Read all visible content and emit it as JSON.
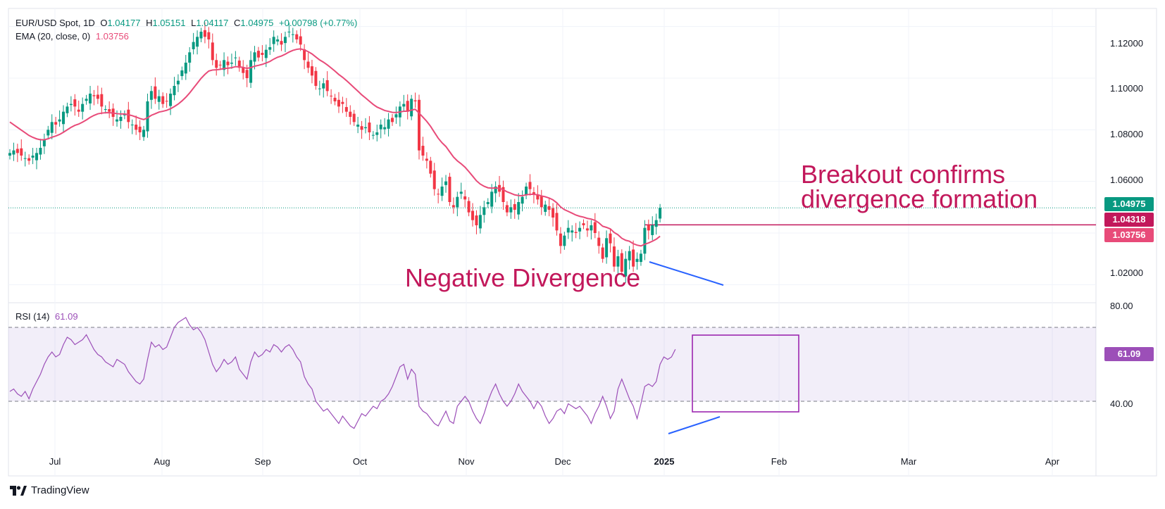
{
  "header": {
    "symbol": "EUR/USD Spot, 1D",
    "open_label": "O",
    "open": "1.04177",
    "high_label": "H",
    "high": "1.05151",
    "low_label": "L",
    "low": "1.04117",
    "close_label": "C",
    "close": "1.04975",
    "change": "+0.00798 (+0.77%)",
    "ema_label": "EMA (20, close, 0)",
    "ema_value": "1.03756",
    "rsi_label": "RSI (14)",
    "rsi_value": "61.09"
  },
  "annotations": {
    "breakout_line1": "Breakout confirms",
    "breakout_line2": "divergence formation",
    "negative_divergence": "Negative Divergence"
  },
  "badges": {
    "last_price": "1.04975",
    "breakout_level": "1.04318",
    "ema": "1.03756",
    "rsi": "61.09"
  },
  "price_axis_labels": [
    "1.12000",
    "1.10000",
    "1.08000",
    "1.06000",
    "1.02000"
  ],
  "rsi_axis_labels": [
    "80.00",
    "40.00"
  ],
  "month_labels": [
    "Jul",
    "Aug",
    "Sep",
    "Oct",
    "Nov",
    "Dec",
    "2025",
    "Feb",
    "Mar",
    "Apr"
  ],
  "branding": {
    "name": "TradingView"
  },
  "colors": {
    "up": "#089981",
    "down": "#f23645",
    "ema": "#e84b79",
    "rsi": "#9c4fb8",
    "annotation": "#c2185b",
    "trendline": "#2962ff",
    "last_price_badge": "#089981",
    "level_badge": "#c2185b",
    "ema_badge": "#e84b79"
  },
  "chart_data": [
    {
      "type": "candlestick",
      "title": "EUR/USD Spot, 1D",
      "x_type": "date",
      "ylim": [
        1.013,
        1.127
      ],
      "x_ticks": [
        "Jul",
        "Aug",
        "Sep",
        "Oct",
        "Nov",
        "Dec",
        "2025",
        "Feb",
        "Mar",
        "Apr"
      ],
      "series": [
        {
          "name": "EUR/USD",
          "style": "candles",
          "close": [
            1.071,
            1.072,
            1.071,
            1.07,
            1.069,
            1.068,
            1.07,
            1.071,
            1.073,
            1.076,
            1.08,
            1.083,
            1.082,
            1.084,
            1.087,
            1.089,
            1.09,
            1.089,
            1.087,
            1.09,
            1.092,
            1.094,
            1.093,
            1.092,
            1.089,
            1.088,
            1.087,
            1.085,
            1.084,
            1.085,
            1.086,
            1.083,
            1.082,
            1.08,
            1.079,
            1.08,
            1.091,
            1.095,
            1.092,
            1.093,
            1.09,
            1.091,
            1.094,
            1.097,
            1.099,
            1.103,
            1.106,
            1.11,
            1.114,
            1.116,
            1.118,
            1.116,
            1.115,
            1.107,
            1.104,
            1.105,
            1.107,
            1.105,
            1.106,
            1.108,
            1.104,
            1.102,
            1.1,
            1.107,
            1.11,
            1.108,
            1.109,
            1.111,
            1.112,
            1.116,
            1.115,
            1.113,
            1.116,
            1.118,
            1.117,
            1.115,
            1.113,
            1.107,
            1.104,
            1.101,
            1.097,
            1.096,
            1.098,
            1.095,
            1.093,
            1.091,
            1.089,
            1.09,
            1.087,
            1.085,
            1.083,
            1.082,
            1.08,
            1.081,
            1.079,
            1.078,
            1.079,
            1.082,
            1.081,
            1.084,
            1.083,
            1.086,
            1.089,
            1.09,
            1.087,
            1.092,
            1.091,
            1.072,
            1.07,
            1.068,
            1.063,
            1.057,
            1.055,
            1.058,
            1.06,
            1.052,
            1.05,
            1.054,
            1.056,
            1.053,
            1.048,
            1.045,
            1.043,
            1.047,
            1.05,
            1.052,
            1.056,
            1.058,
            1.056,
            1.052,
            1.048,
            1.05,
            1.049,
            1.052,
            1.054,
            1.058,
            1.057,
            1.055,
            1.053,
            1.05,
            1.051,
            1.049,
            1.046,
            1.041,
            1.035,
            1.039,
            1.042,
            1.041,
            1.04,
            1.042,
            1.043,
            1.041,
            1.043,
            1.04,
            1.035,
            1.03,
            1.038,
            1.036,
            1.027,
            1.031,
            1.025,
            1.03,
            1.033,
            1.027,
            1.03,
            1.032,
            1.042,
            1.041,
            1.043,
            1.045,
            1.04975
          ]
        },
        {
          "name": "EMA (20, close, 0)",
          "style": "line"
        },
        {
          "name": "Breakout level",
          "style": "horizontal",
          "value": 1.04318
        },
        {
          "name": "Last price",
          "style": "horizontal-dotted",
          "value": 1.04975
        }
      ],
      "annotations": [
        "Breakout confirms divergence formation",
        "Negative Divergence"
      ]
    },
    {
      "type": "line",
      "title": "RSI (14)",
      "ylim": [
        20,
        80
      ],
      "reference_lines": [
        40,
        70
      ],
      "series": [
        {
          "name": "RSI (14)",
          "values": [
            44,
            45,
            43,
            42,
            44,
            41,
            45,
            48,
            51,
            55,
            58,
            60,
            58,
            59,
            63,
            66,
            65,
            63,
            64,
            65,
            67,
            64,
            61,
            59,
            58,
            56,
            55,
            54,
            57,
            56,
            55,
            52,
            50,
            48,
            47,
            49,
            57,
            64,
            62,
            63,
            61,
            62,
            66,
            70,
            72,
            73,
            74,
            71,
            69,
            70,
            68,
            65,
            60,
            55,
            52,
            54,
            57,
            55,
            56,
            58,
            53,
            51,
            49,
            56,
            60,
            58,
            59,
            61,
            60,
            63,
            62,
            60,
            62,
            63,
            61,
            58,
            56,
            50,
            47,
            45,
            40,
            38,
            36,
            37,
            35,
            33,
            31,
            34,
            32,
            30,
            29,
            32,
            35,
            34,
            36,
            38,
            37,
            40,
            41,
            43,
            46,
            50,
            54,
            55,
            49,
            53,
            51,
            38,
            36,
            35,
            33,
            31,
            30,
            33,
            36,
            32,
            31,
            38,
            40,
            42,
            40,
            36,
            33,
            31,
            35,
            40,
            44,
            47,
            43,
            40,
            38,
            40,
            43,
            47,
            44,
            42,
            40,
            37,
            40,
            38,
            34,
            31,
            33,
            36,
            37,
            35,
            39,
            38,
            37,
            38,
            36,
            34,
            31,
            35,
            38,
            42,
            38,
            33,
            36,
            45,
            49,
            45,
            41,
            38,
            33,
            39,
            46,
            47,
            46,
            48,
            55,
            58,
            57,
            58,
            61.09
          ]
        },
        {
          "name": "RSI band",
          "style": "band",
          "from": 40,
          "to": 70
        }
      ]
    }
  ]
}
